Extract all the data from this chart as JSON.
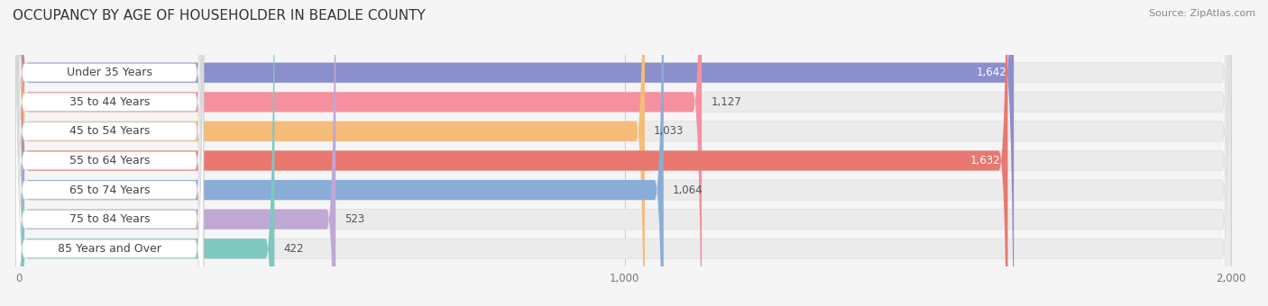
{
  "title": "OCCUPANCY BY AGE OF HOUSEHOLDER IN BEADLE COUNTY",
  "source": "Source: ZipAtlas.com",
  "categories": [
    "Under 35 Years",
    "35 to 44 Years",
    "45 to 54 Years",
    "55 to 64 Years",
    "65 to 74 Years",
    "75 to 84 Years",
    "85 Years and Over"
  ],
  "values": [
    1642,
    1127,
    1033,
    1632,
    1064,
    523,
    422
  ],
  "bar_colors": [
    "#8b8fcc",
    "#f590a0",
    "#f5bc7a",
    "#e87870",
    "#8aadd8",
    "#c0a8d5",
    "#7ec8c0"
  ],
  "xlim": [
    0,
    2000
  ],
  "xticks": [
    0,
    1000,
    2000
  ],
  "xtick_labels": [
    "0",
    "1,000",
    "2,000"
  ],
  "background_color": "#f5f5f5",
  "bar_bg_color": "#ebebeb",
  "bar_height": 0.68,
  "title_fontsize": 11,
  "source_fontsize": 8,
  "label_fontsize": 9,
  "value_fontsize": 8.5,
  "value_inside_threshold": 1500
}
